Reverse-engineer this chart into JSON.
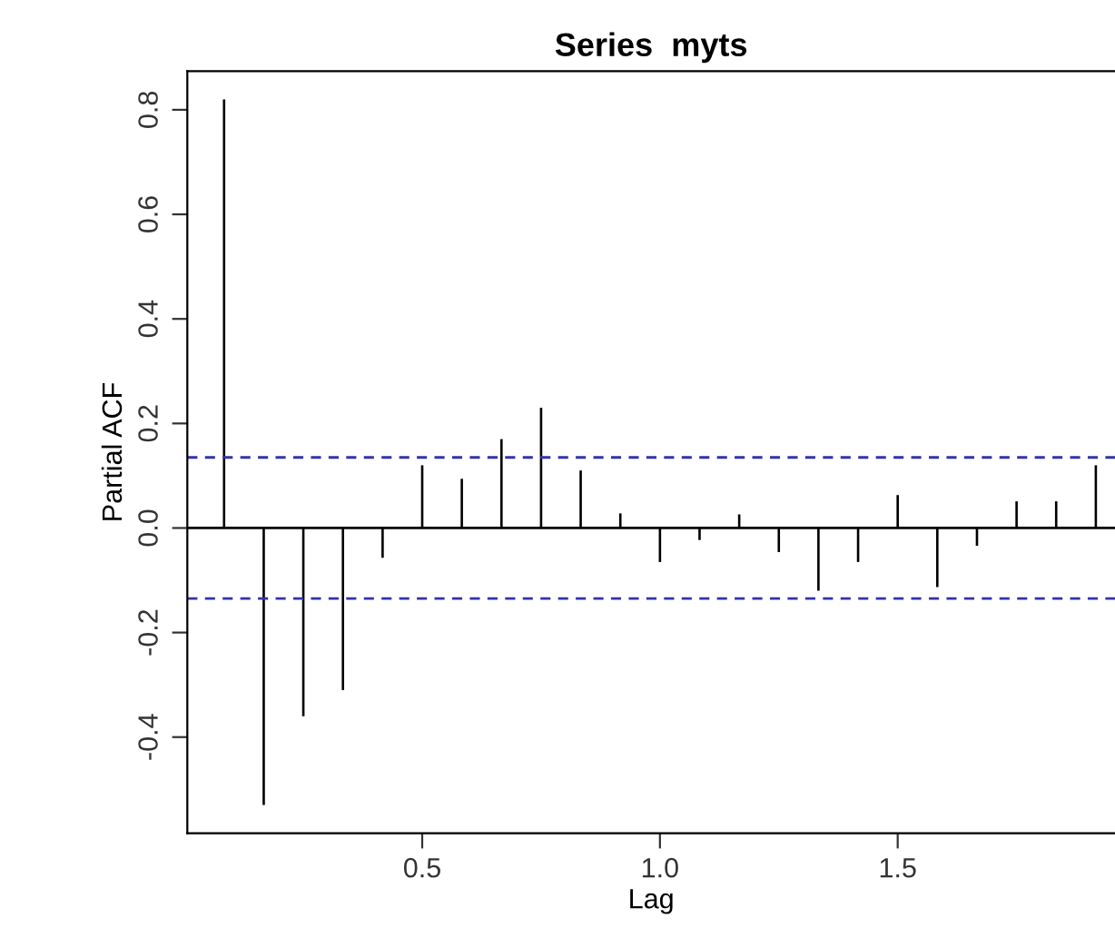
{
  "chart_data": {
    "type": "bar",
    "title": "Series  myts",
    "xlabel": "Lag",
    "ylabel": "Partial ACF",
    "x": [
      0.0833,
      0.1667,
      0.25,
      0.3333,
      0.4167,
      0.5,
      0.5833,
      0.6667,
      0.75,
      0.8333,
      0.9167,
      1.0,
      1.0833,
      1.1667,
      1.25,
      1.3333,
      1.4167,
      1.5,
      1.5833,
      1.6667,
      1.75,
      1.8333,
      1.9167
    ],
    "values": [
      0.82,
      -0.53,
      -0.36,
      -0.31,
      -0.057,
      0.12,
      0.094,
      0.17,
      0.23,
      0.11,
      0.028,
      -0.065,
      -0.023,
      0.026,
      -0.046,
      -0.12,
      -0.065,
      0.063,
      -0.113,
      -0.034,
      0.051,
      0.051,
      0.12
    ],
    "color": "#000000",
    "xlim": [
      0.006,
      1.957
    ],
    "xticks": [
      0.5,
      {
        "value": 1.0,
        "label": "1.0"
      },
      1.5
    ],
    "ylim": [
      -0.584,
      0.874
    ],
    "yticks": [
      -0.4,
      -0.2,
      {
        "value": 0.0,
        "label": "0.0"
      },
      0.2,
      0.4,
      0.6,
      0.8
    ],
    "ref_lines": [
      {
        "axis": "y",
        "value": 0.135,
        "color": "#3333aa",
        "line_style": "dashed"
      },
      {
        "axis": "y",
        "value": -0.135,
        "color": "#3333aa",
        "line_style": "dashed"
      },
      {
        "axis": "y",
        "value": 0.0,
        "color": "#000000",
        "line_style": "solid"
      }
    ],
    "grid": false
  }
}
